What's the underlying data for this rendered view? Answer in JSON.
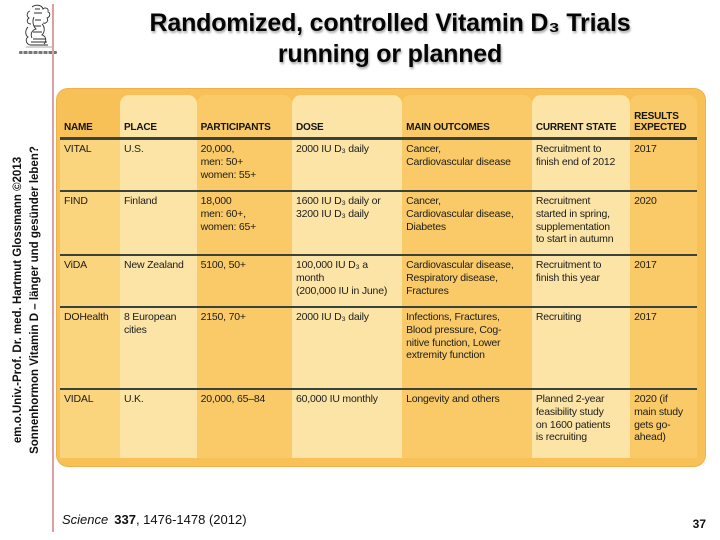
{
  "slide": {
    "title_line1": "Randomized, controlled Vitamin D₃ Trials",
    "title_line2": "running or planned",
    "page_number": "37"
  },
  "sidebar": {
    "line1": "em.o.Univ.-Prof. Dr. med. Hartmut Glossmann ©2013",
    "line2": "Sonnenhormon Vitamin D – länger und gesünder leben?"
  },
  "footer": {
    "journal": "Science",
    "volume": "337",
    "citation_rest": ", 1476-1478 (2012)"
  },
  "table": {
    "columns": [
      {
        "key": "name",
        "label": "NAME"
      },
      {
        "key": "place",
        "label": "PLACE"
      },
      {
        "key": "participants",
        "label": "PARTICIPANTS"
      },
      {
        "key": "dose",
        "label": "DOSE"
      },
      {
        "key": "main-outcomes",
        "label": "MAIN OUTCOMES"
      },
      {
        "key": "current-state",
        "label": "CURRENT STATE"
      },
      {
        "key": "results-expected",
        "label": "RESULTS\nEXPECTED"
      }
    ],
    "rows": [
      {
        "id": "vital",
        "cells": [
          "VITAL",
          "U.S.",
          "20,000,\nmen: 50+\nwomen: 55+",
          "2000 IU D₃ daily",
          "Cancer,\nCardiovascular disease",
          "Recruitment to\nfinish end of 2012",
          "2017"
        ]
      },
      {
        "id": "find",
        "cells": [
          "FIND",
          "Finland",
          "18,000\nmen: 60+,\nwomen: 65+",
          "1600 IU D₃ daily or\n3200 IU D₃ daily",
          "Cancer,\nCardiovascular disease,\nDiabetes",
          "Recruitment\nstarted in spring,\nsupplementation\nto start in autumn",
          "2020"
        ]
      },
      {
        "id": "vida",
        "cells": [
          "ViDA",
          "New Zealand",
          "5100, 50+",
          "100,000 IU D₃ a\nmonth\n(200,000 IU in June)",
          "Cardiovascular disease,\nRespiratory disease,\nFractures",
          "Recruitment to\nfinish this year",
          "2017"
        ]
      },
      {
        "id": "dohealth",
        "cells": [
          "DOHealth",
          "8 European\ncities",
          "2150, 70+",
          "2000 IU D₃ daily",
          "Infections, Fractures,\nBlood pressure, Cog-\nnitive function, Lower\nextremity function",
          "Recruiting",
          "2017"
        ]
      },
      {
        "id": "vidal",
        "cells": [
          "VIDAL",
          "U.K.",
          "20,000, 65–84",
          "60,000 IU monthly",
          "Longevity and others",
          "Planned 2-year\nfeasibility study\non 1600 patients\nis recruiting",
          "2020 (if\nmain study\ngets go-\nahead)"
        ]
      }
    ]
  },
  "colors": {
    "table_frame": "#F8C158",
    "column_light": "#FCE4A6",
    "column_medium": "#F9CA67",
    "column_name": "#FBD47E",
    "row_rule": "#3A423C",
    "sidebar_line": "#DDA0A0"
  }
}
